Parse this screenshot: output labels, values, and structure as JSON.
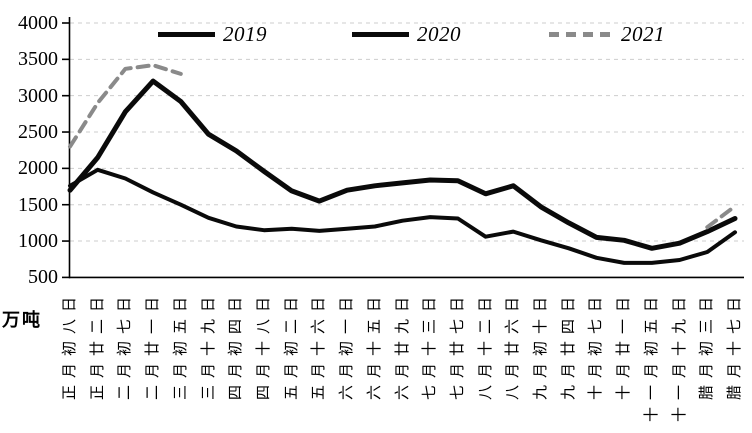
{
  "unit": "万吨",
  "legend": {
    "items": [
      "2019",
      "2020",
      "2021"
    ]
  },
  "chart_data": {
    "type": "line",
    "title": "",
    "xlabel": "",
    "ylabel": "万吨",
    "unit_label": "万吨",
    "ylim": [
      500,
      4000
    ],
    "ytick_step": 500,
    "yticks": [
      4000,
      3500,
      3000,
      2500,
      2000,
      1500,
      1000,
      500
    ],
    "grid": "horizontal-dashed",
    "legend_position": "top-center",
    "categories": [
      "正月初八日",
      "正月廿二日",
      "二月初七日",
      "二月廿一日",
      "三月初五日",
      "三月十九日",
      "四月初四日",
      "四月十八日",
      "五月初二日",
      "五月十六日",
      "六月初一日",
      "六月十五日",
      "六月廿九日",
      "七月十三日",
      "七月廿七日",
      "八月十二日",
      "八月廿六日",
      "九月初十日",
      "九月廿四日",
      "十月初七日",
      "十月廿一日",
      "十一月初五日",
      "十一月十九日",
      "腊月初三日",
      "腊月十七日"
    ],
    "series": [
      {
        "name": "2019",
        "color": "#0a0a0a",
        "style": "solid",
        "stroke_width": 5,
        "values": [
          1700,
          2150,
          2780,
          3200,
          2920,
          2470,
          2240,
          1960,
          1690,
          1550,
          1700,
          1760,
          1800,
          1840,
          1830,
          1650,
          1760,
          1470,
          1250,
          1050,
          1010,
          900,
          970,
          1130,
          1310
        ]
      },
      {
        "name": "2020",
        "color": "#0a0a0a",
        "style": "solid",
        "stroke_width": 4,
        "values": [
          1760,
          1980,
          1860,
          1670,
          1500,
          1320,
          1200,
          1150,
          1170,
          1140,
          1170,
          1200,
          1280,
          1330,
          1310,
          1060,
          1130,
          1010,
          900,
          770,
          700,
          700,
          740,
          850,
          1120
        ]
      },
      {
        "name": "2021",
        "color": "#8a8a8a",
        "style": "dashed",
        "stroke_width": 4,
        "values": [
          2300,
          2900,
          3370,
          3420,
          3300,
          null,
          null,
          null,
          null,
          null,
          null,
          null,
          null,
          null,
          null,
          null,
          null,
          null,
          null,
          null,
          null,
          null,
          null,
          1190,
          1480
        ]
      }
    ]
  }
}
